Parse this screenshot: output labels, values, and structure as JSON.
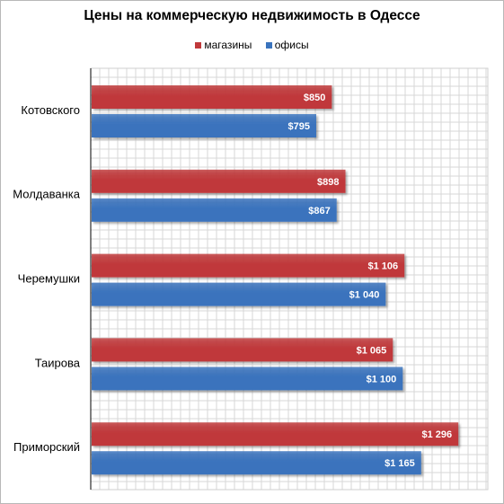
{
  "chart_data": {
    "type": "bar",
    "orientation": "horizontal",
    "title": "Цены на коммерческую недвижимость в Одессе",
    "categories": [
      "Котовского",
      "Молдаванка",
      "Черемушки",
      "Таирова",
      "Приморский"
    ],
    "series": [
      {
        "name": "магазины",
        "color": "#c0393b",
        "values": [
          850,
          898,
          1106,
          1065,
          1296
        ],
        "labels": [
          "$850",
          "$898",
          "$1 106",
          "$1 065",
          "$1 296"
        ]
      },
      {
        "name": "офисы",
        "color": "#3a73bd",
        "values": [
          795,
          867,
          1040,
          1100,
          1165
        ],
        "labels": [
          "$795",
          "$867",
          "$1 040",
          "$1 100",
          "$1 165"
        ]
      }
    ],
    "xlim": [
      0,
      1400
    ],
    "grid": true,
    "legend_position": "top"
  }
}
